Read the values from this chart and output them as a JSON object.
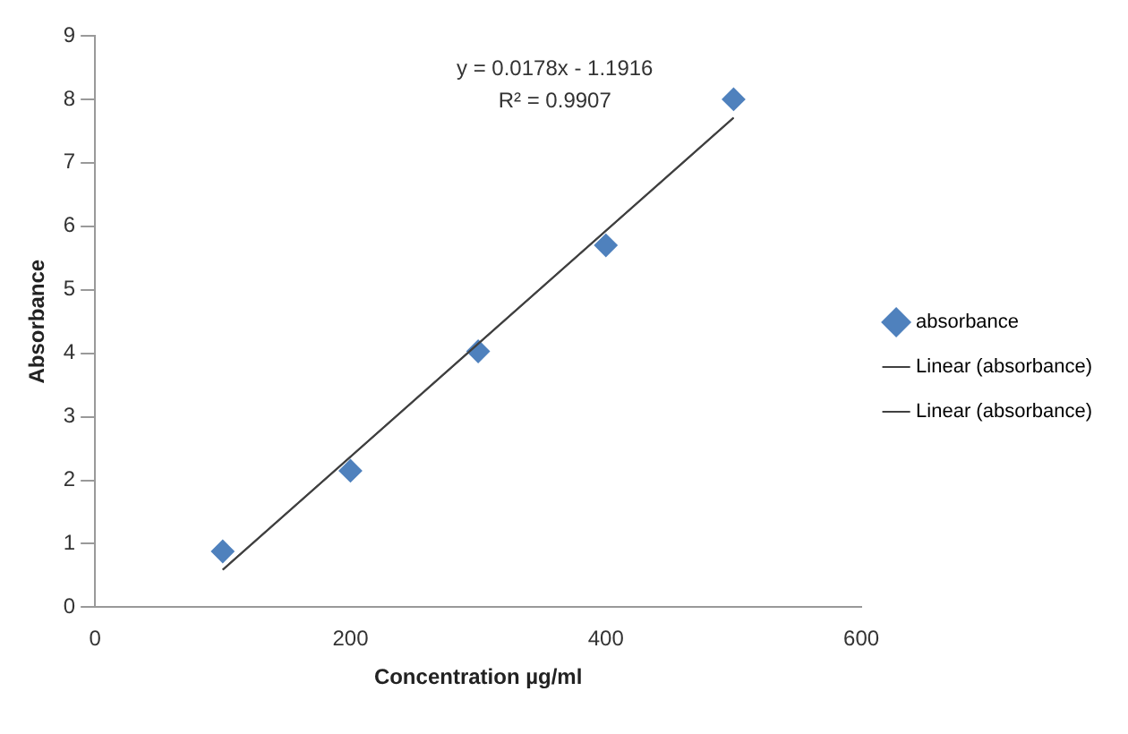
{
  "chart_data": {
    "type": "scatter",
    "xlabel": "Concentration µg/ml",
    "ylabel": "Absorbance",
    "xlim": [
      0,
      600
    ],
    "xticks": [
      0,
      200,
      400,
      600
    ],
    "ylim": [
      0,
      9
    ],
    "yticks": [
      0,
      1,
      2,
      3,
      4,
      5,
      6,
      7,
      8,
      9
    ],
    "grid": false,
    "legend": "right",
    "marker": "diamond",
    "series": [
      {
        "name": "absorbance",
        "color": "#4f81bd",
        "x": [
          100,
          200,
          300,
          400,
          500
        ],
        "values": [
          0.88,
          2.15,
          4.03,
          5.7,
          8.0
        ]
      },
      {
        "name": "Linear (absorbance)",
        "type": "line",
        "marker": "none",
        "color": "#404040",
        "x": [
          100,
          500
        ],
        "values": [
          0.59,
          7.71
        ]
      },
      {
        "name": "Linear (absorbance)",
        "type": "line",
        "marker": "none",
        "color": "#404040",
        "x": [
          100,
          500
        ],
        "values": [
          0.59,
          7.71
        ]
      }
    ],
    "annotations": [
      "y = 0.0178x - 1.1916",
      "R² = 0.9907"
    ]
  }
}
